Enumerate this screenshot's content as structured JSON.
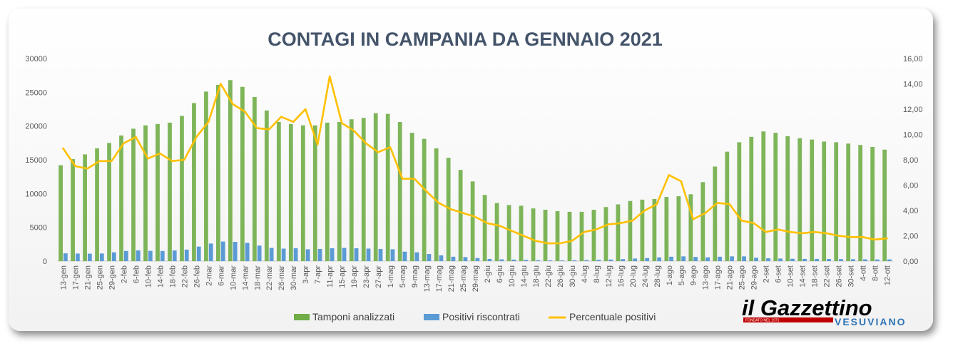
{
  "chart_data": {
    "type": "bar",
    "title": "CONTAGI IN CAMPANIA DA GENNAIO 2021",
    "categories": [
      "13-gen",
      "17-gen",
      "21-gen",
      "25-gen",
      "29-gen",
      "2-feb",
      "6-feb",
      "10-feb",
      "14-feb",
      "18-feb",
      "22-feb",
      "26-feb",
      "2-mar",
      "6-mar",
      "10-mar",
      "14-mar",
      "18-mar",
      "22-mar",
      "26-mar",
      "30-mar",
      "3-apr",
      "7-apr",
      "11-apr",
      "15-apr",
      "19-apr",
      "23-apr",
      "27-apr",
      "1-mag",
      "5-mag",
      "9-mag",
      "13-mag",
      "17-mag",
      "21-mag",
      "25-mag",
      "29-mag",
      "2-giu",
      "6-giu",
      "10-giu",
      "14-giu",
      "18-giu",
      "22-giu",
      "26-giu",
      "30-giu",
      "4-lug",
      "8-lug",
      "12-lug",
      "16-lug",
      "20-lug",
      "24-lug",
      "28-lug",
      "1-ago",
      "5-ago",
      "9-ago",
      "13-ago",
      "17-ago",
      "21-ago",
      "25-ago",
      "29-ago",
      "2-set",
      "6-set",
      "10-set",
      "14-set",
      "18-set",
      "22-set",
      "26-set",
      "30-set",
      "4-ott",
      "8-ott",
      "12-ott"
    ],
    "y_left": {
      "ylim": [
        0,
        30000
      ],
      "ticks": [
        "0",
        "5000",
        "10000",
        "15000",
        "20000",
        "25000",
        "30000"
      ]
    },
    "y_right": {
      "ylim": [
        0,
        16
      ],
      "ticks": [
        "0,00",
        "2,00",
        "4,00",
        "6,00",
        "8,00",
        "10,00",
        "12,00",
        "14,00",
        "16,00"
      ]
    },
    "series": [
      {
        "name": "Tamponi analizzati",
        "kind": "bar",
        "axis": "left",
        "color": "#70ad47",
        "values": [
          14200,
          15100,
          15800,
          16700,
          17500,
          18600,
          19600,
          20100,
          20300,
          20500,
          21500,
          23400,
          25100,
          26100,
          26800,
          25800,
          24300,
          22300,
          20600,
          20300,
          20100,
          20100,
          20500,
          20600,
          21000,
          21200,
          21900,
          21800,
          20600,
          19000,
          18100,
          16700,
          15300,
          13500,
          11800,
          9800,
          8600,
          8300,
          8200,
          7800,
          7600,
          7400,
          7300,
          7300,
          7600,
          8000,
          8400,
          8900,
          9100,
          9200,
          9500,
          9600,
          9900,
          11700,
          14000,
          16200,
          17600,
          18400,
          19200,
          19000,
          18500,
          18200,
          18000,
          17700,
          17600,
          17400,
          17200,
          16900,
          16500
        ]
      },
      {
        "name": "Positivi riscontrati",
        "kind": "bar",
        "axis": "left",
        "color": "#5b9bd5",
        "values": [
          1150,
          1120,
          1100,
          1130,
          1300,
          1500,
          1580,
          1520,
          1500,
          1580,
          1700,
          2150,
          2600,
          2900,
          2850,
          2700,
          2300,
          1950,
          1850,
          1900,
          1750,
          1800,
          1900,
          1950,
          1900,
          1850,
          1800,
          1750,
          1400,
          1300,
          1050,
          850,
          650,
          600,
          450,
          320,
          260,
          220,
          180,
          130,
          110,
          100,
          120,
          150,
          190,
          230,
          300,
          380,
          450,
          550,
          650,
          700,
          620,
          560,
          650,
          700,
          700,
          500,
          420,
          380,
          350,
          330,
          330,
          320,
          300,
          280,
          260,
          240,
          250
        ]
      },
      {
        "name": "Percentuale positivi",
        "kind": "line",
        "axis": "right",
        "color": "#ffc000",
        "values": [
          8.9,
          7.5,
          7.3,
          7.9,
          7.9,
          9.3,
          9.8,
          8.1,
          8.5,
          7.9,
          8.0,
          9.8,
          11.0,
          14.0,
          12.4,
          11.8,
          10.5,
          10.4,
          11.4,
          11.0,
          12.0,
          9.2,
          14.6,
          10.9,
          10.3,
          9.3,
          8.6,
          9.0,
          6.5,
          6.5,
          5.5,
          4.6,
          4.1,
          3.8,
          3.5,
          3.0,
          2.8,
          2.4,
          2.0,
          1.6,
          1.4,
          1.4,
          1.6,
          2.3,
          2.5,
          2.9,
          3.0,
          3.2,
          4.0,
          4.5,
          6.8,
          6.3,
          3.3,
          3.8,
          4.6,
          4.5,
          3.2,
          3.0,
          2.3,
          2.5,
          2.3,
          2.2,
          2.3,
          2.2,
          2.0,
          1.9,
          1.9,
          1.7,
          1.8
        ]
      }
    ],
    "legend": {
      "position": "bottom"
    }
  },
  "logo": {
    "main": "il Gazzettino",
    "tagline": "FONDATO NEL 1971",
    "sub": "VESUVIANO"
  }
}
